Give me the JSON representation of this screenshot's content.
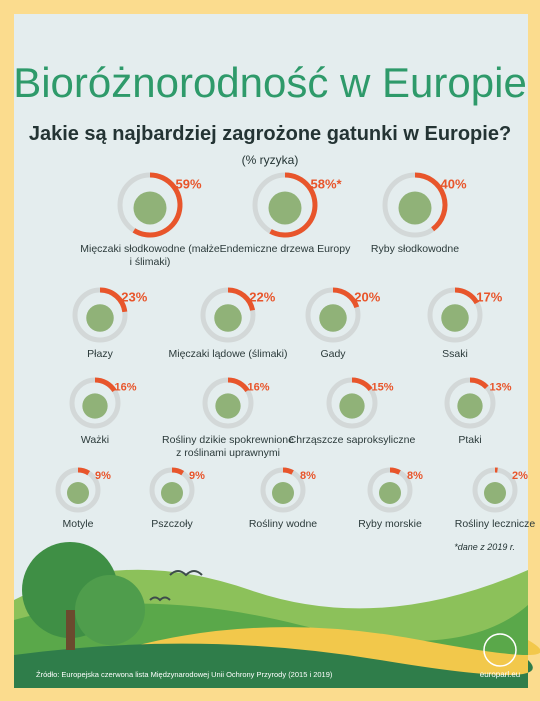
{
  "chart_data": {
    "type": "ring",
    "title": "Bioróżnorodność w Europie",
    "subtitle": "Jakie są najbardziej zagrożone gatunki w Europie?",
    "unit_note": "(% ryzyka)",
    "categories": [
      "Mięczaki słodkowodne (małże i ślimaki)",
      "Endemiczne drzewa Europy",
      "Ryby słodkowodne",
      "Płazy",
      "Mięczaki lądowe (ślimaki)",
      "Gady",
      "Ssaki",
      "Ważki",
      "Rośliny dzikie spokrewnione z roślinami uprawnymi",
      "Chrząszcze saproksyliczne",
      "Ptaki",
      "Motyle",
      "Pszczoły",
      "Rośliny wodne",
      "Ryby morskie",
      "Rośliny lecznicze"
    ],
    "values": [
      59,
      58,
      40,
      23,
      22,
      20,
      17,
      16,
      16,
      15,
      13,
      9,
      9,
      8,
      8,
      2
    ],
    "value_labels": [
      "59%",
      "58%*",
      "40%",
      "23%",
      "22%",
      "20%",
      "17%",
      "16%",
      "16%",
      "15%",
      "13%",
      "9%",
      "9%",
      "8%",
      "8%",
      "2%"
    ],
    "color": "#e8552b",
    "track_color": "#d3d8d8"
  },
  "footnote": "*dane z 2019 r.",
  "source": "Źródło: Europejska czerwona lista Międzynarodowej Unii Ochrony Przyrody (2015 i 2019)",
  "site": "europarl.eu"
}
